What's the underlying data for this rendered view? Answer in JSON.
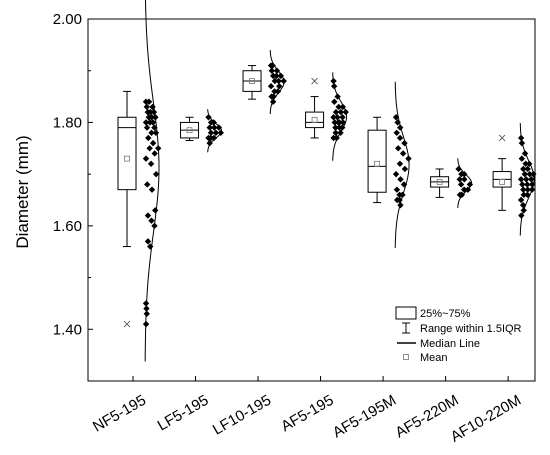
{
  "chart_data": {
    "type": "box",
    "ylabel": "Diameter (mm)",
    "xlabel": "",
    "ylim": [
      1.3,
      2.0
    ],
    "yticks": [
      "1.40",
      "1.60",
      "1.80",
      "2.00"
    ],
    "legend_position": "bottom-right",
    "legend": {
      "box": "25%~75%",
      "whisker": "Range within 1.5IQR",
      "median": "Median Line",
      "mean": "Mean"
    },
    "categories": [
      "NF5-195",
      "LF5-195",
      "LF10-195",
      "AF5-195",
      "AF5-195M",
      "AF5-220M",
      "AF10-220M"
    ],
    "boxes": [
      {
        "name": "NF5-195",
        "q1": 1.67,
        "median": 1.79,
        "q3": 1.81,
        "mean": 1.73,
        "whisker_low": 1.56,
        "whisker_high": 1.86,
        "outliers": [
          1.41
        ],
        "points": [
          1.84,
          1.84,
          1.83,
          1.83,
          1.82,
          1.82,
          1.82,
          1.81,
          1.81,
          1.81,
          1.8,
          1.8,
          1.8,
          1.79,
          1.79,
          1.78,
          1.78,
          1.77,
          1.76,
          1.75,
          1.75,
          1.74,
          1.73,
          1.72,
          1.7,
          1.68,
          1.67,
          1.63,
          1.62,
          1.61,
          1.6,
          1.57,
          1.56,
          1.45,
          1.44,
          1.43,
          1.41
        ]
      },
      {
        "name": "LF5-195",
        "q1": 1.77,
        "median": 1.785,
        "q3": 1.8,
        "mean": 1.785,
        "whisker_low": 1.765,
        "whisker_high": 1.81,
        "outliers": [],
        "points": [
          1.81,
          1.8,
          1.8,
          1.79,
          1.79,
          1.79,
          1.78,
          1.78,
          1.78,
          1.77,
          1.77,
          1.77,
          1.76
        ]
      },
      {
        "name": "LF10-195",
        "q1": 1.86,
        "median": 1.88,
        "q3": 1.9,
        "mean": 1.88,
        "whisker_low": 1.845,
        "whisker_high": 1.91,
        "outliers": [],
        "points": [
          1.91,
          1.91,
          1.9,
          1.9,
          1.89,
          1.89,
          1.89,
          1.88,
          1.88,
          1.88,
          1.87,
          1.87,
          1.86,
          1.86,
          1.85,
          1.85,
          1.84
        ]
      },
      {
        "name": "AF5-195",
        "q1": 1.79,
        "median": 1.8,
        "q3": 1.82,
        "mean": 1.805,
        "whisker_low": 1.77,
        "whisker_high": 1.85,
        "outliers": [
          1.88
        ],
        "points": [
          1.88,
          1.87,
          1.85,
          1.84,
          1.83,
          1.83,
          1.82,
          1.82,
          1.82,
          1.81,
          1.81,
          1.81,
          1.8,
          1.8,
          1.8,
          1.8,
          1.79,
          1.79,
          1.79,
          1.78,
          1.78,
          1.77,
          1.77
        ]
      },
      {
        "name": "AF5-195M",
        "q1": 1.665,
        "median": 1.715,
        "q3": 1.785,
        "mean": 1.72,
        "whisker_low": 1.645,
        "whisker_high": 1.81,
        "outliers": [],
        "points": [
          1.81,
          1.8,
          1.79,
          1.78,
          1.77,
          1.76,
          1.75,
          1.74,
          1.73,
          1.72,
          1.71,
          1.7,
          1.69,
          1.68,
          1.67,
          1.66,
          1.66,
          1.65,
          1.65,
          1.64
        ]
      },
      {
        "name": "AF5-220M",
        "q1": 1.675,
        "median": 1.685,
        "q3": 1.695,
        "mean": 1.685,
        "whisker_low": 1.655,
        "whisker_high": 1.71,
        "outliers": [],
        "points": [
          1.71,
          1.7,
          1.7,
          1.69,
          1.69,
          1.68,
          1.68,
          1.67,
          1.67,
          1.66,
          1.66
        ]
      },
      {
        "name": "AF10-220M",
        "q1": 1.675,
        "median": 1.69,
        "q3": 1.705,
        "mean": 1.685,
        "whisker_low": 1.63,
        "whisker_high": 1.73,
        "outliers": [
          1.77
        ],
        "points": [
          1.77,
          1.76,
          1.74,
          1.73,
          1.72,
          1.72,
          1.71,
          1.71,
          1.7,
          1.7,
          1.7,
          1.69,
          1.69,
          1.69,
          1.68,
          1.68,
          1.68,
          1.67,
          1.67,
          1.67,
          1.66,
          1.66,
          1.65,
          1.64,
          1.63,
          1.62
        ]
      }
    ]
  }
}
